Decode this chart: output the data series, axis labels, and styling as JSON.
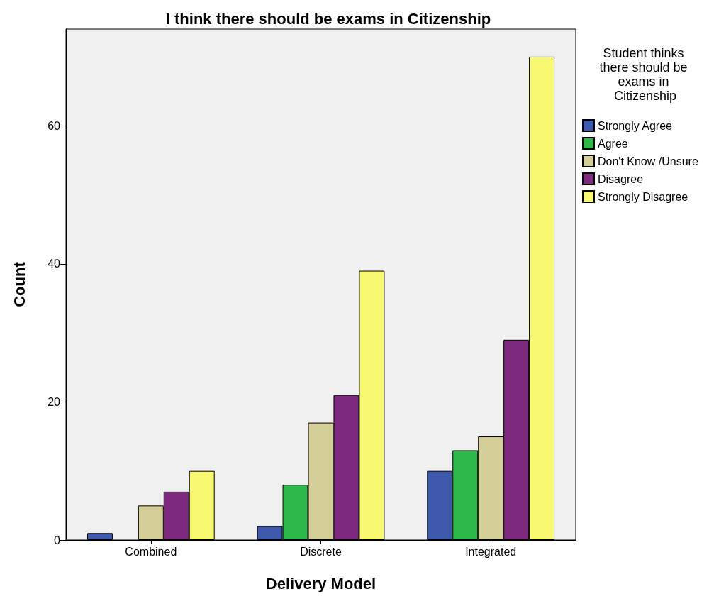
{
  "chart_data": {
    "type": "bar",
    "title": "I think there should be exams in Citizenship",
    "xlabel": "Delivery Model",
    "ylabel": "Count",
    "legend_title": "Student thinks there should be exams in Citizenship",
    "categories": [
      "Combined",
      "Discrete",
      "Integrated"
    ],
    "series": [
      {
        "name": "Strongly Agree",
        "color": "#3e58ac",
        "values": [
          1,
          2,
          10
        ]
      },
      {
        "name": "Agree",
        "color": "#2fb84a",
        "values": [
          null,
          8,
          13
        ]
      },
      {
        "name": "Don't Know /Unsure",
        "color": "#d4cf99",
        "values": [
          5,
          17,
          15
        ]
      },
      {
        "name": "Disagree",
        "color": "#7d2a7e",
        "values": [
          7,
          21,
          29
        ]
      },
      {
        "name": "Strongly Disagree",
        "color": "#f9f871",
        "values": [
          10,
          39,
          70
        ]
      }
    ],
    "ylim": [
      0,
      74
    ],
    "yticks": [
      0,
      20,
      40,
      60
    ],
    "grid": false,
    "legend": "top right"
  }
}
